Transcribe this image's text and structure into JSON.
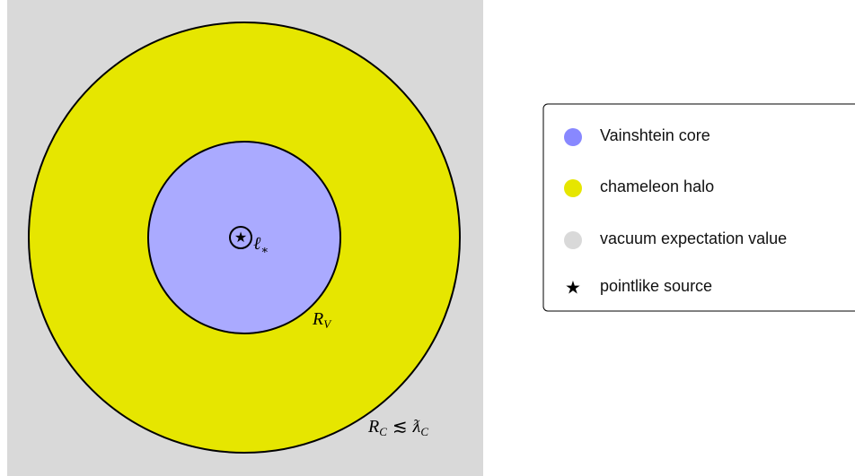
{
  "diagram": {
    "labels": {
      "source_scale": {
        "main": "ℓ",
        "sub": "∗"
      },
      "vainshtein_radius": {
        "main": "R",
        "sub": "V"
      },
      "chameleon_radius": {
        "main": "R",
        "sub": "C",
        "relation": "≲",
        "main2": "ƛ",
        "sub2": "C"
      }
    },
    "legend": [
      {
        "label": "Vainshtein core"
      },
      {
        "label": "chameleon halo"
      },
      {
        "label": "vacuum expectation value"
      },
      {
        "label": "pointlike source"
      }
    ]
  }
}
